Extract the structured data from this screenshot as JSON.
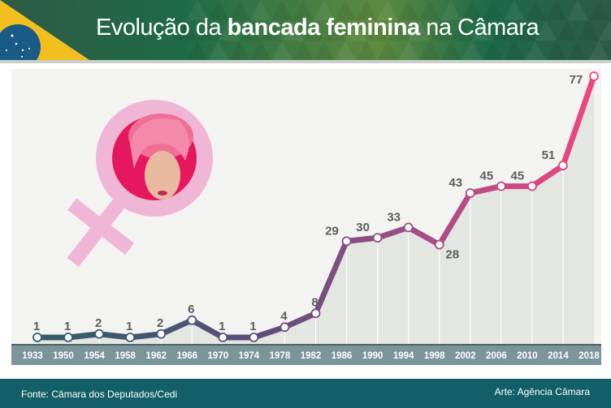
{
  "header": {
    "title_prefix": "Evolução da ",
    "title_bold": "bancada feminina",
    "title_suffix": " na Câmara"
  },
  "footer": {
    "source": "Fonte: Câmara dos Deputados/Cedi",
    "credit": "Arte: Agência Câmara"
  },
  "colors": {
    "header_green": "#1e6a48",
    "footer_teal": "#135f67",
    "axis_band": "#7b959b",
    "line_start": "#2e5f6b",
    "line_mid": "#6b4f7a",
    "line_end": "#f0457f",
    "symbol_pink": "#f0b6d6"
  },
  "chart_data": {
    "type": "line",
    "title": "Evolução da bancada feminina na Câmara",
    "xlabel": "",
    "ylabel": "",
    "categories": [
      "1933",
      "1950",
      "1954",
      "1958",
      "1962",
      "1966",
      "1970",
      "1974",
      "1978",
      "1982",
      "1986",
      "1990",
      "1994",
      "1998",
      "2002",
      "2006",
      "2010",
      "2014",
      "2018"
    ],
    "values": [
      1,
      1,
      2,
      1,
      2,
      6,
      1,
      1,
      4,
      8,
      29,
      30,
      33,
      28,
      43,
      45,
      45,
      51,
      77
    ],
    "ylim": [
      1,
      77
    ],
    "grid": "vertical",
    "legend": "none",
    "icon": "female-symbol-icon"
  }
}
